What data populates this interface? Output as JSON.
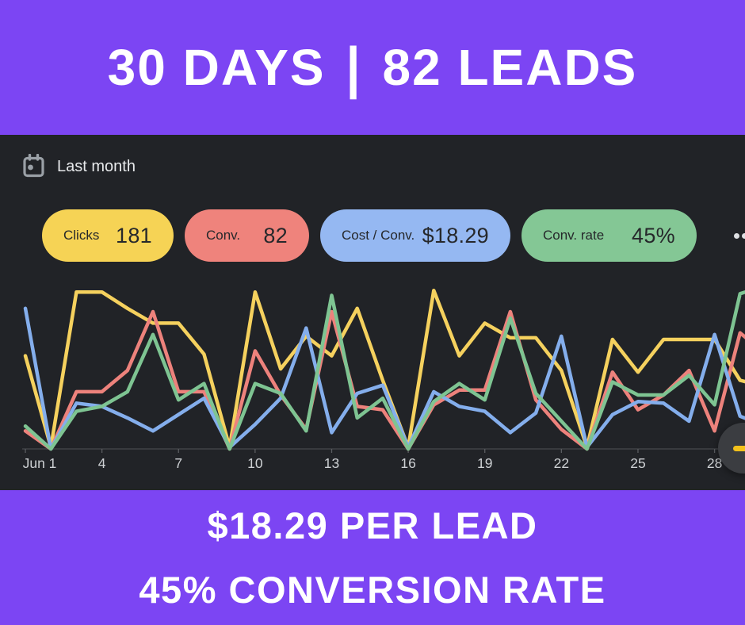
{
  "banners": {
    "bg_color": "#7C45F3",
    "text_color": "#FFFFFF",
    "top_left": "30 DAYS",
    "top_separator": "|",
    "top_right": "82 LEADS",
    "bottom_line1": "$18.29 PER LEAD",
    "bottom_line2": "45% CONVERSION RATE"
  },
  "panel": {
    "bg_color": "#212327",
    "date_range_label": "Last month",
    "date_icon": "calendar-icon",
    "more_icon": "more-options-icon",
    "metrics_text_color": "#26282B",
    "metrics": [
      {
        "id": "clicks",
        "label": "Clicks",
        "value": "181",
        "color": "#F6D355"
      },
      {
        "id": "conv",
        "label": "Conv.",
        "value": "82",
        "color": "#EF837C"
      },
      {
        "id": "cost-conv",
        "label": "Cost / Conv.",
        "value": "$18.29",
        "color": "#95B8F2"
      },
      {
        "id": "conv-rate",
        "label": "Conv. rate",
        "value": "45%",
        "color": "#84C795"
      }
    ]
  },
  "chart_data": {
    "type": "line",
    "title": "",
    "xlabel": "",
    "ylabel": "",
    "x_days": [
      1,
      2,
      3,
      4,
      5,
      6,
      7,
      8,
      9,
      10,
      11,
      12,
      13,
      14,
      15,
      16,
      17,
      18,
      19,
      20,
      21,
      22,
      23,
      24,
      25,
      26,
      27,
      28,
      29,
      30
    ],
    "x_tick_days": [
      1,
      4,
      7,
      10,
      13,
      16,
      19,
      22,
      25,
      28
    ],
    "x_tick_labels": [
      "Jun 1",
      "4",
      "7",
      "10",
      "13",
      "16",
      "19",
      "22",
      "25",
      "28"
    ],
    "ylim": [
      0,
      100
    ],
    "y_axis_visible": false,
    "grid": false,
    "legend_position": "chips-above-chart",
    "axis_color": "#47494D",
    "tick_color": "#5A5D61",
    "tick_label_color": "#CDD0D3",
    "series": [
      {
        "name": "Clicks",
        "color": "#F5D15E",
        "values": [
          57,
          1,
          96,
          96,
          86,
          77,
          77,
          58,
          1,
          96,
          49,
          69,
          57,
          86,
          42,
          1,
          97,
          57,
          77,
          68,
          68,
          48,
          1,
          67,
          47,
          67,
          67,
          67,
          42,
          38
        ]
      },
      {
        "name": "Conv.",
        "color": "#ED827C",
        "values": [
          11,
          0,
          35,
          35,
          48,
          84,
          35,
          35,
          0,
          60,
          33,
          12,
          84,
          26,
          24,
          0,
          27,
          36,
          36,
          84,
          30,
          12,
          0,
          47,
          24,
          33,
          48,
          11,
          71,
          58
        ]
      },
      {
        "name": "Cost / Conv.",
        "color": "#84AEEC",
        "values": [
          86,
          0,
          28,
          26,
          19,
          11,
          21,
          31,
          1,
          15,
          31,
          74,
          10,
          34,
          39,
          1,
          35,
          26,
          23,
          10,
          22,
          69,
          1,
          21,
          29,
          28,
          17,
          70,
          20,
          14
        ]
      },
      {
        "name": "Conv. rate",
        "color": "#7EC492",
        "values": [
          14,
          0,
          23,
          26,
          35,
          70,
          30,
          40,
          0,
          40,
          34,
          11,
          94,
          19,
          31,
          0,
          29,
          40,
          30,
          80,
          34,
          17,
          0,
          41,
          33,
          33,
          45,
          27,
          95,
          100
        ]
      }
    ]
  },
  "fab": {
    "bg_color": "#3B3D41",
    "dash_color": "#F3C11B",
    "icon": "yellow-dash-icon"
  }
}
